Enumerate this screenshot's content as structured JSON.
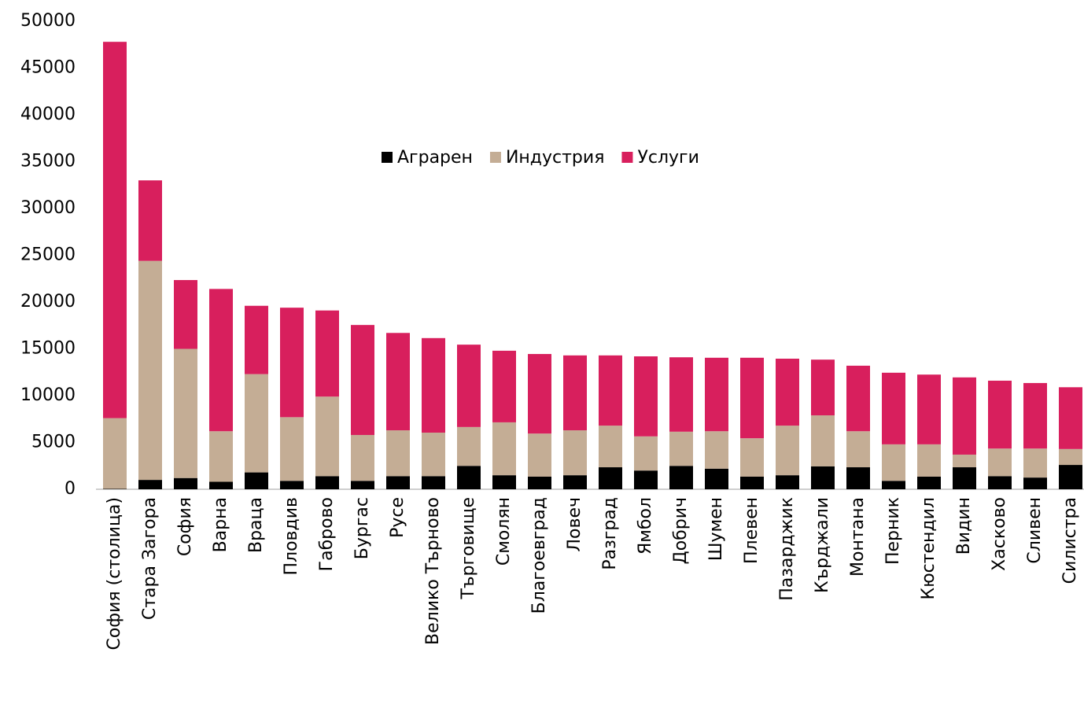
{
  "chart_data": {
    "type": "stacked_bar",
    "categories": [
      "София (столица)",
      "Стара Загора",
      "София",
      "Варна",
      "Враца",
      "Пловдив",
      "Габрово",
      "Бургас",
      "Русе",
      "Велико Търново",
      "Търговище",
      "Смолян",
      "Благоевград",
      "Ловеч",
      "Разград",
      "Ямбол",
      "Добрич",
      "Шумен",
      "Плевен",
      "Пазарджик",
      "Кърджали",
      "Монтана",
      "Перник",
      "Кюстендил",
      "Видин",
      "Хасково",
      "Сливен",
      "Силистра"
    ],
    "series": [
      {
        "name": "Аграрен",
        "color": "#000000",
        "values": [
          50,
          1000,
          1200,
          800,
          1800,
          900,
          1400,
          900,
          1400,
          1400,
          2500,
          1500,
          1350,
          1500,
          2350,
          2000,
          2500,
          2200,
          1350,
          1500,
          2450,
          2350,
          900,
          1350,
          2350,
          1400,
          1250,
          2600
        ]
      },
      {
        "name": "Индустрия",
        "color": "#c4ad95",
        "values": [
          7550,
          23400,
          13800,
          5400,
          10500,
          6800,
          8500,
          4900,
          4900,
          4650,
          4150,
          5650,
          4600,
          4800,
          4450,
          3650,
          3650,
          4000,
          4100,
          5300,
          5450,
          3850,
          3900,
          3450,
          1350,
          2950,
          3100,
          1700
        ]
      },
      {
        "name": "Услуги",
        "color": "#d81f5d",
        "values": [
          40200,
          8600,
          7350,
          15200,
          7300,
          11700,
          9200,
          11750,
          10400,
          10100,
          8800,
          7650,
          8500,
          8000,
          7500,
          8550,
          7950,
          7850,
          8600,
          7150,
          5950,
          7000,
          7650,
          7450,
          8250,
          7250,
          7000,
          6600
        ]
      }
    ],
    "ylim": [
      0,
      50000
    ],
    "yticks": [
      0,
      5000,
      10000,
      15000,
      20000,
      25000,
      30000,
      35000,
      40000,
      45000,
      50000
    ],
    "legend": "top"
  }
}
